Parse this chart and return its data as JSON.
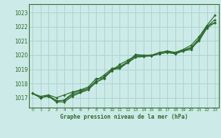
{
  "title": "Graphe pression niveau de la mer (hPa)",
  "bg_color": "#cceae7",
  "grid_color": "#aad4d0",
  "line_color": "#2d6a2d",
  "text_color": "#2d6a2d",
  "xlim": [
    -0.5,
    23.5
  ],
  "ylim": [
    1016.3,
    1023.6
  ],
  "yticks": [
    1017,
    1018,
    1019,
    1020,
    1021,
    1022,
    1023
  ],
  "xticks": [
    0,
    1,
    2,
    3,
    4,
    5,
    6,
    7,
    8,
    9,
    10,
    11,
    12,
    13,
    14,
    15,
    16,
    17,
    18,
    19,
    20,
    21,
    22,
    23
  ],
  "series": [
    [
      1017.3,
      1017.0,
      1017.1,
      1016.7,
      1016.7,
      1017.1,
      1017.35,
      1017.55,
      1018.1,
      1018.35,
      1019.0,
      1019.05,
      1019.5,
      1019.95,
      1019.95,
      1020.0,
      1020.1,
      1020.2,
      1020.1,
      1020.3,
      1020.4,
      1021.1,
      1022.0,
      1022.5
    ],
    [
      1017.3,
      1017.0,
      1017.15,
      1016.8,
      1016.8,
      1017.2,
      1017.4,
      1017.65,
      1018.05,
      1018.5,
      1018.95,
      1019.15,
      1019.45,
      1019.85,
      1019.9,
      1019.95,
      1020.1,
      1020.2,
      1020.1,
      1020.3,
      1020.5,
      1021.0,
      1021.9,
      1022.3
    ],
    [
      1017.3,
      1017.0,
      1017.15,
      1016.75,
      1016.85,
      1017.3,
      1017.5,
      1017.65,
      1018.2,
      1018.6,
      1019.05,
      1019.2,
      1019.55,
      1020.05,
      1020.0,
      1020.0,
      1020.2,
      1020.3,
      1020.2,
      1020.4,
      1020.7,
      1021.3,
      1022.1,
      1022.8
    ],
    [
      1017.3,
      1017.1,
      1017.2,
      1017.0,
      1017.2,
      1017.4,
      1017.55,
      1017.75,
      1018.35,
      1018.4,
      1018.9,
      1019.35,
      1019.65,
      1019.95,
      1019.95,
      1019.95,
      1020.1,
      1020.25,
      1020.15,
      1020.35,
      1020.55,
      1021.15,
      1022.05,
      1022.3
    ]
  ]
}
